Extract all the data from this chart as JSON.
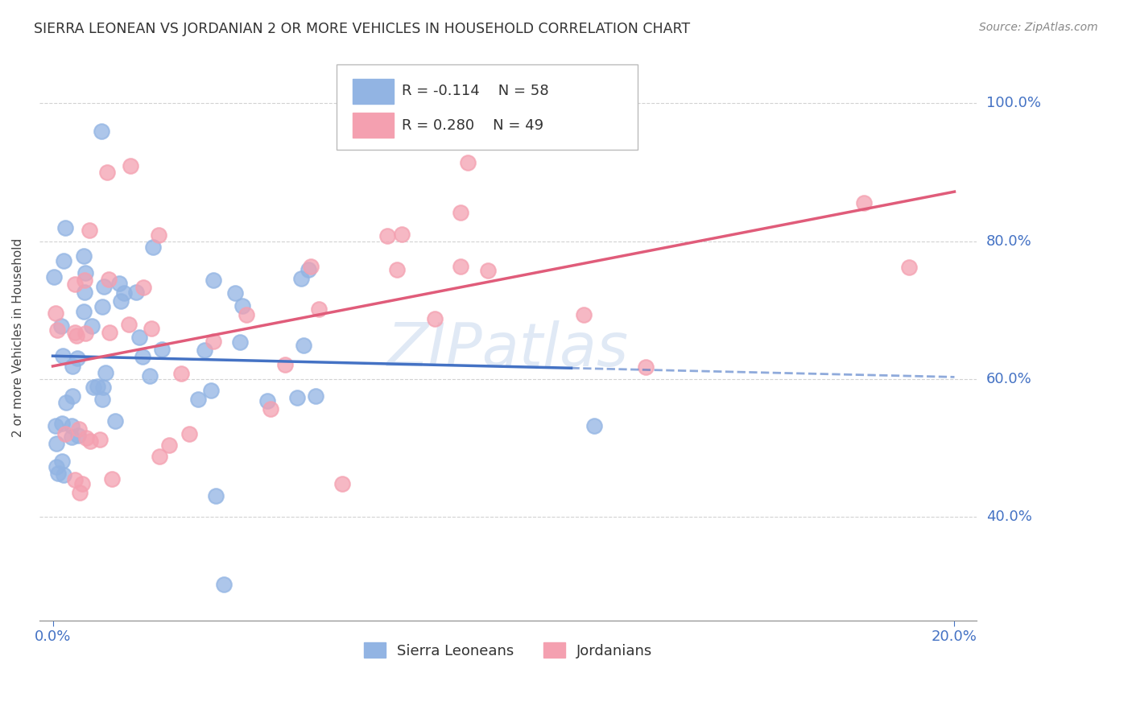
{
  "title": "SIERRA LEONEAN VS JORDANIAN 2 OR MORE VEHICLES IN HOUSEHOLD CORRELATION CHART",
  "source": "Source: ZipAtlas.com",
  "ylabel": "2 or more Vehicles in Household",
  "watermark": "ZIPatlas",
  "legend_blue_R": "R = -0.114",
  "legend_blue_N": "N = 58",
  "legend_pink_R": "R = 0.280",
  "legend_pink_N": "N = 49",
  "blue_color": "#92B4E3",
  "pink_color": "#F4A0B0",
  "blue_line_color": "#4472C4",
  "pink_line_color": "#E05C7A",
  "title_color": "#333333",
  "axis_label_color": "#4472C4",
  "grid_color": "#C0C0C0",
  "background_color": "#FFFFFF"
}
